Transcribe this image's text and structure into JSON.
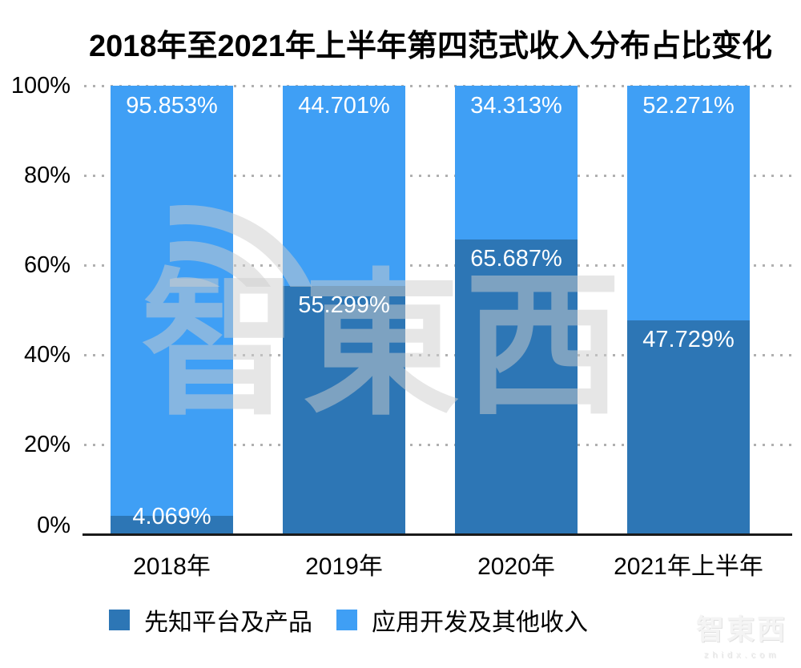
{
  "watermark": {
    "logo_text": "智東西",
    "domain_text": "zhidx.com"
  },
  "chart_data": {
    "type": "bar",
    "stacked": true,
    "title": "2018年至2021年上半年第四范式收入分布占比变化",
    "categories": [
      "2018年",
      "2019年",
      "2020年",
      "2021年上半年"
    ],
    "series": [
      {
        "name": "先知平台及产品",
        "color": "#2D76B5",
        "values": [
          4.069,
          55.299,
          65.687,
          47.729
        ],
        "data_labels": [
          "4.069%",
          "55.299%",
          "65.687%",
          "47.729%"
        ]
      },
      {
        "name": "应用开发及其他收入",
        "color": "#3F9FF5",
        "values": [
          95.853,
          44.701,
          34.313,
          52.271
        ],
        "data_labels": [
          "95.853%",
          "44.701%",
          "34.313%",
          "52.271%"
        ]
      }
    ],
    "y_ticks": [
      {
        "label": "100%",
        "value": 100
      },
      {
        "label": "80%",
        "value": 80
      },
      {
        "label": "60%",
        "value": 60
      },
      {
        "label": "40%",
        "value": 40
      },
      {
        "label": "20%",
        "value": 20
      },
      {
        "label": "0%",
        "value": 0
      }
    ],
    "ylim": [
      0,
      100
    ],
    "grid": "horizontal-dotted",
    "grid_color": "#b0b0b0",
    "legend_position": "bottom-left",
    "data_label_color": "#ffffff"
  }
}
